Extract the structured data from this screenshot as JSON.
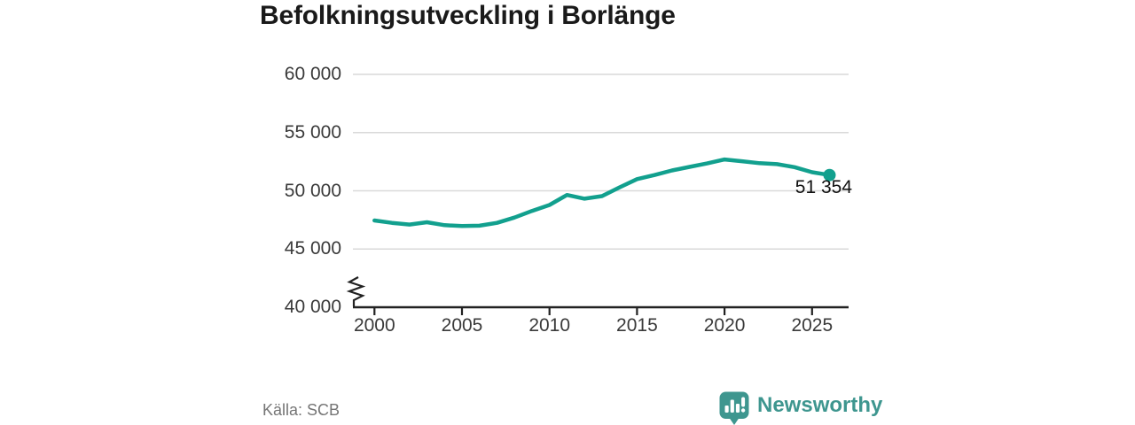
{
  "title": "Befolkningsutveckling i Borlänge",
  "source": {
    "label": "Källa: SCB"
  },
  "annotation": {
    "label": "51 354"
  },
  "branding": {
    "name": "Newsworthy",
    "icon": "newsworthy-bubble-chart-icon"
  },
  "colors": {
    "line": "#12a08e",
    "dot": "#12a08e",
    "grid": "#d9d9d9",
    "axis": "#222222",
    "tick_label": "#3a3a3a",
    "title": "#1a1a1a",
    "annotation_text": "#111111",
    "source_text": "#757575",
    "brand": "#3e968f",
    "background": "#ffffff"
  },
  "chart_data": {
    "type": "line",
    "title": "Befolkningsutveckling i Borlänge",
    "xlabel": "",
    "ylabel": "",
    "x": [
      2000,
      2001,
      2002,
      2003,
      2004,
      2005,
      2006,
      2007,
      2008,
      2009,
      2010,
      2011,
      2012,
      2013,
      2014,
      2015,
      2016,
      2017,
      2018,
      2019,
      2020,
      2021,
      2022,
      2023,
      2024,
      2025,
      2026
    ],
    "series": [
      {
        "values": [
          47450,
          47250,
          47100,
          47300,
          47050,
          46970,
          47000,
          47250,
          47700,
          48270,
          48780,
          49640,
          49320,
          49540,
          50300,
          51000,
          51350,
          51750,
          52050,
          52350,
          52690,
          52540,
          52370,
          52290,
          52030,
          51600,
          51354
        ]
      }
    ],
    "last_point_label": "51 354",
    "last_point_value": 51354,
    "y_ticks": [
      {
        "value": 40000,
        "label": "40 000"
      },
      {
        "value": 45000,
        "label": "45 000"
      },
      {
        "value": 50000,
        "label": "50 000"
      },
      {
        "value": 55000,
        "label": "55 000"
      },
      {
        "value": 60000,
        "label": "60 000"
      }
    ],
    "x_ticks": [
      {
        "value": 2000,
        "label": "2000"
      },
      {
        "value": 2005,
        "label": "2005"
      },
      {
        "value": 2010,
        "label": "2010"
      },
      {
        "value": 2015,
        "label": "2015"
      },
      {
        "value": 2020,
        "label": "2020"
      },
      {
        "value": 2025,
        "label": "2025"
      }
    ],
    "ylim": [
      40000,
      60000
    ],
    "xlim": [
      2000,
      2026
    ],
    "grid": "horizontal",
    "legend": "none",
    "axis_break": true
  }
}
